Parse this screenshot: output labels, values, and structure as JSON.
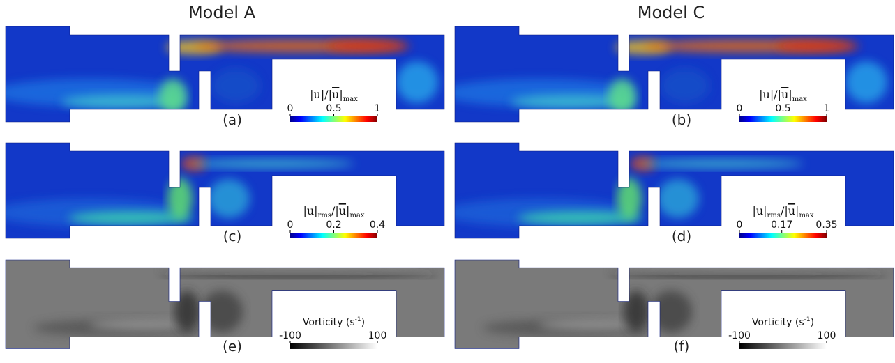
{
  "headers": [
    "Model A",
    "Model C"
  ],
  "panels": [
    {
      "label": "(a)",
      "kind": "speed",
      "colorbar": {
        "title": [
          {
            "text": "|u|/|"
          },
          {
            "text": "u",
            "over": true
          },
          {
            "text": "|"
          },
          {
            "text": "max",
            "sub": true
          }
        ],
        "range": [
          0,
          1
        ],
        "ticks": [
          0,
          0.5,
          1
        ],
        "colormap": "jet"
      }
    },
    {
      "label": "(b)",
      "kind": "speed",
      "colorbar": {
        "title": [
          {
            "text": "|u|/|"
          },
          {
            "text": "u",
            "over": true
          },
          {
            "text": "|"
          },
          {
            "text": "max",
            "sub": true
          }
        ],
        "range": [
          0,
          1
        ],
        "ticks": [
          0,
          0.5,
          1
        ],
        "colormap": "jet"
      }
    },
    {
      "label": "(c)",
      "kind": "rms",
      "colorbar": {
        "title": [
          {
            "text": "|u|"
          },
          {
            "text": "rms",
            "sub": true
          },
          {
            "text": "/|"
          },
          {
            "text": "u",
            "over": true
          },
          {
            "text": "|"
          },
          {
            "text": "max",
            "sub": true
          }
        ],
        "range": [
          0,
          0.4
        ],
        "ticks": [
          0,
          0.2,
          0.4
        ],
        "colormap": "jet"
      }
    },
    {
      "label": "(d)",
      "kind": "rms",
      "colorbar": {
        "title": [
          {
            "text": "|u|"
          },
          {
            "text": "rms",
            "sub": true
          },
          {
            "text": "/|"
          },
          {
            "text": "u",
            "over": true
          },
          {
            "text": "|"
          },
          {
            "text": "max",
            "sub": true
          }
        ],
        "range": [
          0,
          0.35
        ],
        "ticks": [
          0,
          0.17,
          0.35
        ],
        "colormap": "jet"
      }
    },
    {
      "label": "(e)",
      "kind": "vorticity",
      "colorbar": {
        "title": [
          {
            "text": "Vorticity (s"
          },
          {
            "text": "-1",
            "sup": true
          },
          {
            "text": ")"
          }
        ],
        "range": [
          -100,
          100
        ],
        "ticks": [
          -100,
          100
        ],
        "colormap": "gray"
      }
    },
    {
      "label": "(f)",
      "kind": "vorticity",
      "colorbar": {
        "title": [
          {
            "text": "Vorticity (s"
          },
          {
            "text": "-1",
            "sup": true
          },
          {
            "text": ")"
          }
        ],
        "range": [
          -100,
          100
        ],
        "ticks": [
          -100,
          100
        ],
        "colormap": "gray"
      }
    }
  ]
}
